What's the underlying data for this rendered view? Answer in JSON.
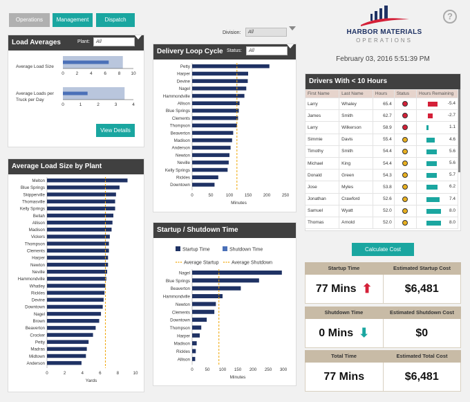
{
  "tabs": [
    "Operations",
    "Management",
    "Dispatch"
  ],
  "division": {
    "label": "Division:",
    "value": "All"
  },
  "logo": {
    "line1": "HARBOR MATERIALS",
    "line2": "OPERATIONS"
  },
  "datetime": "February 03, 2016 5:51:39 PM",
  "help_label": "?",
  "load_averages": {
    "title": "Load Averages",
    "plant_label": "Plant:",
    "plant_value": "All",
    "view_details": "View Details"
  },
  "delivery_loop": {
    "title": "Delivery Loop Cycle",
    "status_label": "Status:",
    "status_value": "All"
  },
  "drivers": {
    "title": "Drivers With < 10 Hours",
    "columns": [
      "First Name",
      "Last Name",
      "Hours",
      "Status",
      "Hours Remaining"
    ],
    "rows": [
      {
        "first": "Larry",
        "last": "Whaley",
        "hours": "65.4",
        "status": "#d42038",
        "remaining": -5.4,
        "remaining_label": "-5.4"
      },
      {
        "first": "James",
        "last": "Smith",
        "hours": "62.7",
        "status": "#d42038",
        "remaining": -2.7,
        "remaining_label": "-2.7"
      },
      {
        "first": "Larry",
        "last": "Wilkerson",
        "hours": "58.9",
        "status": "#d42038",
        "remaining": 1.1,
        "remaining_label": "1.1"
      },
      {
        "first": "Simmie",
        "last": "Davis",
        "hours": "55.4",
        "status": "#e8b020",
        "remaining": 4.6,
        "remaining_label": "4.6"
      },
      {
        "first": "Timothy",
        "last": "Smith",
        "hours": "54.4",
        "status": "#e8b020",
        "remaining": 5.6,
        "remaining_label": "5.6"
      },
      {
        "first": "Michael",
        "last": "King",
        "hours": "54.4",
        "status": "#e8b020",
        "remaining": 5.6,
        "remaining_label": "5.6"
      },
      {
        "first": "Donald",
        "last": "Green",
        "hours": "54.3",
        "status": "#e8b020",
        "remaining": 5.7,
        "remaining_label": "5.7"
      },
      {
        "first": "Jose",
        "last": "Myles",
        "hours": "53.8",
        "status": "#e8b020",
        "remaining": 6.2,
        "remaining_label": "6.2"
      },
      {
        "first": "Jonathan",
        "last": "Crawford",
        "hours": "52.6",
        "status": "#e8b020",
        "remaining": 7.4,
        "remaining_label": "7.4"
      },
      {
        "first": "Samuel",
        "last": "Wyatt",
        "hours": "52.0",
        "status": "#e8b020",
        "remaining": 8.0,
        "remaining_label": "8.0"
      },
      {
        "first": "Thomas",
        "last": "Arnold",
        "hours": "52.0",
        "status": "#e8b020",
        "remaining": 8.0,
        "remaining_label": "8.0"
      }
    ]
  },
  "calculate_cost": "Calculate Cost",
  "kpis": [
    {
      "left_label": "Startup Time",
      "right_label": "Estimated Startup Cost",
      "value": "77 Mins",
      "cost": "$6,481",
      "arrow": "up"
    },
    {
      "left_label": "Shutdown Time",
      "right_label": "Estimated Shutdown Cost",
      "value": "0 Mins",
      "cost": "$0",
      "arrow": "down"
    },
    {
      "left_label": "Total Time",
      "right_label": "Estimated Total Cost",
      "value": "77 Mins",
      "cost": "$6,481",
      "arrow": ""
    }
  ],
  "colors": {
    "tab": "#1aa6a0",
    "tab_active": "#b0b0b0",
    "bar": "#1f3264",
    "bar_light": "#4a70b8",
    "avg": "#f0a500",
    "red": "#d42038",
    "teal": "#1aa6a0"
  },
  "chart_data": [
    {
      "id": "load_averages",
      "type": "bar",
      "orientation": "horizontal",
      "rows": [
        {
          "label": "Average Load Size",
          "value": 6.5,
          "range": 8.5,
          "xlim": [
            0,
            10
          ],
          "ticks": [
            0,
            2,
            4,
            6,
            8,
            10
          ]
        },
        {
          "label": "Average Loads per Truck per Day",
          "value": 1.4,
          "range": 3.5,
          "xlim": [
            0,
            4
          ],
          "ticks": [
            0,
            1,
            2,
            3,
            4
          ]
        }
      ]
    },
    {
      "id": "avg_load_size_by_plant",
      "title": "Average Load Size by Plant",
      "type": "bar",
      "orientation": "horizontal",
      "categories": [
        "Melton",
        "Blue Springs",
        "Skipperville",
        "Thomasville",
        "Kelly Springs",
        "Bellah",
        "Allison",
        "Madison",
        "Vickers",
        "Thompson",
        "Clements",
        "Harper",
        "Newton",
        "Neville",
        "Hammondville",
        "Whatley",
        "Rickles",
        "Devine",
        "Downtown",
        "Nagel",
        "Brown",
        "Beaverton",
        "Crocker",
        "Petty",
        "Madras",
        "Midtown",
        "Anderson"
      ],
      "values": [
        9.1,
        8.2,
        7.8,
        7.7,
        7.7,
        7.5,
        7.4,
        7.3,
        7.1,
        7.0,
        7.0,
        6.9,
        6.9,
        6.8,
        6.7,
        6.6,
        6.5,
        6.4,
        6.3,
        6.1,
        5.9,
        5.5,
        5.2,
        4.7,
        4.5,
        4.4,
        3.9
      ],
      "average": 6.6,
      "xlabel": "Yards",
      "xlim": [
        0,
        10
      ],
      "ticks": [
        0,
        2,
        4,
        6,
        8,
        10
      ]
    },
    {
      "id": "delivery_loop_cycle",
      "title": "Delivery Loop Cycle",
      "type": "bar",
      "orientation": "horizontal",
      "categories": [
        "Petty",
        "Harper",
        "Devine",
        "Nagel",
        "Hammondville",
        "Allison",
        "Blue Springs",
        "Clements",
        "Thompson",
        "Beaverton",
        "Madison",
        "Anderson",
        "Newton",
        "Neville",
        "Kelly Springs",
        "Rickles",
        "Downtown"
      ],
      "values": [
        207,
        150,
        149,
        145,
        140,
        127,
        125,
        123,
        120,
        110,
        107,
        103,
        100,
        98,
        95,
        70,
        60
      ],
      "average": 120,
      "xlabel": "Minutes",
      "xlim": [
        0,
        250
      ],
      "ticks": [
        0,
        50,
        100,
        150,
        200,
        250
      ]
    },
    {
      "id": "startup_shutdown_time",
      "title": "Startup / Shutdown Time",
      "type": "bar",
      "orientation": "horizontal",
      "legend": [
        "Startup Time",
        "Shutdown Time",
        "Average Startup",
        "Average Shutdown"
      ],
      "categories": [
        "Nagel",
        "Blue Springs",
        "Beaverton",
        "Hammondville",
        "Newton",
        "Clements",
        "Downtown",
        "Thompson",
        "Harper",
        "Madison",
        "Rickles",
        "Allison"
      ],
      "series": [
        {
          "name": "Startup Time",
          "values": [
            295,
            220,
            160,
            100,
            78,
            73,
            48,
            30,
            25,
            15,
            12,
            10
          ]
        },
        {
          "name": "Shutdown Time",
          "values": [
            0,
            0,
            0,
            0,
            0,
            0,
            0,
            0,
            0,
            0,
            0,
            0
          ]
        }
      ],
      "average": 88,
      "xlabel": "Minutes",
      "xlim": [
        0,
        300
      ],
      "ticks": [
        0,
        50,
        100,
        150,
        200,
        250,
        300
      ]
    }
  ]
}
